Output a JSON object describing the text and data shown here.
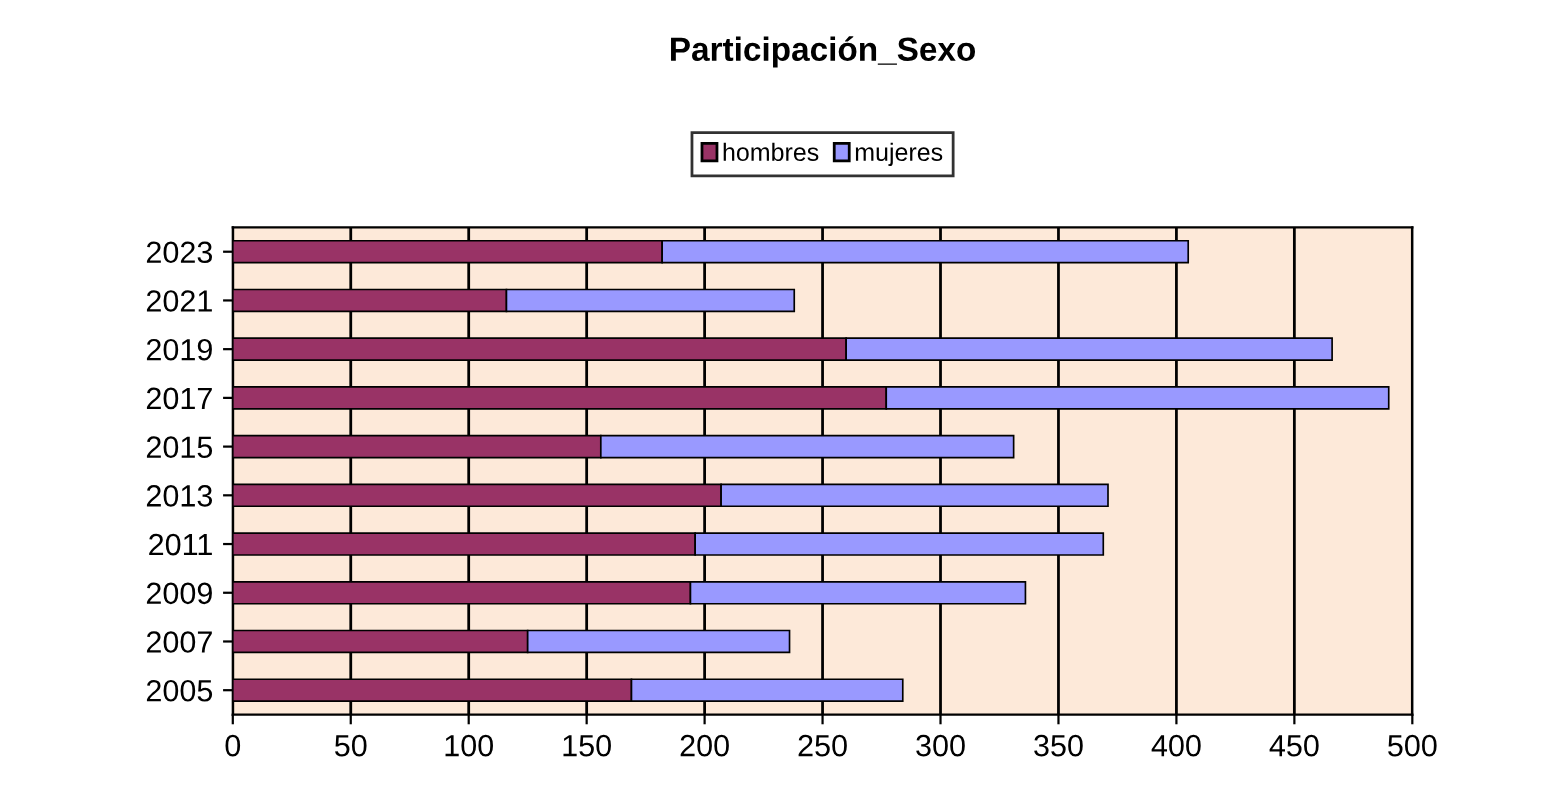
{
  "chart_data": {
    "type": "bar",
    "orientation": "horizontal",
    "stacked": true,
    "title": "Participación_Sexo",
    "categories": [
      "2023",
      "2021",
      "2019",
      "2017",
      "2015",
      "2013",
      "2011",
      "2009",
      "2007",
      "2005"
    ],
    "series": [
      {
        "name": "hombres",
        "color": "#993366",
        "values": [
          182,
          116,
          260,
          277,
          156,
          207,
          196,
          194,
          125,
          169
        ]
      },
      {
        "name": "mujeres",
        "color": "#9999ff",
        "values": [
          223,
          122,
          206,
          213,
          175,
          164,
          173,
          142,
          111,
          115
        ]
      }
    ],
    "xlim": [
      0,
      500
    ],
    "xticks": [
      0,
      50,
      100,
      150,
      200,
      250,
      300,
      350,
      400,
      450,
      500
    ],
    "grid": "x",
    "legend": "top"
  }
}
